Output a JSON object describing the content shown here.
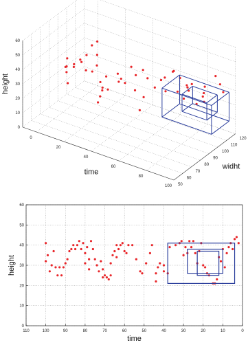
{
  "chart_data": [
    {
      "type": "scatter",
      "title": "",
      "xlabel": "time",
      "ylabel": "widht",
      "zlabel": "height",
      "xlim": [
        0,
        110
      ],
      "ylim": [
        50,
        120
      ],
      "zlim": [
        0,
        60
      ],
      "x_ticks": [
        "100",
        "80",
        "60",
        "40",
        "20",
        "0"
      ],
      "y_ticks": [
        "50",
        "60",
        "70",
        "80",
        "90",
        "100",
        "110",
        "120"
      ],
      "z_ticks": [
        "0",
        "10",
        "20",
        "30",
        "40",
        "50",
        "60"
      ],
      "grid": true,
      "marker_color": "#e8262a",
      "box_color": "#2b3e9c",
      "points": [
        [
          100,
          85,
          35
        ],
        [
          98,
          80,
          32
        ],
        [
          96,
          78,
          30
        ],
        [
          94,
          75,
          36
        ],
        [
          92,
          80,
          34
        ],
        [
          90,
          70,
          28
        ],
        [
          88,
          74,
          40
        ],
        [
          86,
          78,
          42
        ],
        [
          84,
          82,
          44
        ],
        [
          82,
          85,
          50
        ],
        [
          80,
          88,
          52
        ],
        [
          80,
          70,
          46
        ],
        [
          78,
          72,
          40
        ],
        [
          76,
          76,
          38
        ],
        [
          75,
          80,
          48
        ],
        [
          72,
          75,
          44
        ],
        [
          70,
          78,
          26
        ],
        [
          69,
          74,
          24
        ],
        [
          68,
          70,
          22
        ],
        [
          66,
          72,
          32
        ],
        [
          65,
          68,
          38
        ],
        [
          64,
          75,
          30
        ],
        [
          62,
          70,
          42
        ],
        [
          60,
          80,
          40
        ],
        [
          58,
          78,
          36
        ],
        [
          56,
          82,
          34
        ],
        [
          55,
          76,
          40
        ],
        [
          54,
          86,
          44
        ],
        [
          52,
          88,
          38
        ],
        [
          50,
          84,
          30
        ],
        [
          48,
          90,
          42
        ],
        [
          46,
          92,
          36
        ],
        [
          45,
          86,
          26
        ],
        [
          44,
          80,
          20
        ],
        [
          42,
          94,
          30
        ],
        [
          40,
          98,
          34
        ],
        [
          38,
          100,
          26
        ],
        [
          36,
          96,
          38
        ],
        [
          34,
          102,
          40
        ],
        [
          32,
          100,
          42
        ],
        [
          30,
          104,
          36
        ],
        [
          28,
          98,
          30
        ],
        [
          26,
          102,
          24
        ],
        [
          25,
          106,
          28
        ],
        [
          24,
          108,
          32
        ],
        [
          22,
          100,
          34
        ],
        [
          20,
          96,
          38
        ],
        [
          18,
          104,
          22
        ],
        [
          16,
          108,
          26
        ],
        [
          14,
          106,
          30
        ],
        [
          12,
          104,
          36
        ],
        [
          10,
          100,
          28
        ],
        [
          8,
          110,
          42
        ],
        [
          6,
          112,
          36
        ],
        [
          5,
          114,
          30
        ]
      ],
      "boxes": [
        {
          "x": [
            2,
            38
          ],
          "y": [
            96,
            116
          ],
          "z": [
            10,
            30
          ]
        },
        {
          "x": [
            8,
            26
          ],
          "y": [
            100,
            112
          ],
          "z": [
            16,
            28
          ]
        }
      ]
    },
    {
      "type": "scatter",
      "title": "",
      "xlabel": "time",
      "ylabel": "height",
      "xlim": [
        110,
        0
      ],
      "ylim": [
        0,
        60
      ],
      "x_ticks": [
        "110",
        "100",
        "90",
        "80",
        "70",
        "60",
        "50",
        "40",
        "30",
        "20",
        "10",
        "0"
      ],
      "y_ticks": [
        "0",
        "10",
        "20",
        "30",
        "40",
        "50",
        "60"
      ],
      "grid": true,
      "marker_color": "#e8262a",
      "box_color": "#2b3e9c",
      "points": [
        [
          100,
          41
        ],
        [
          100,
          32
        ],
        [
          99,
          35
        ],
        [
          98,
          27
        ],
        [
          97,
          30
        ],
        [
          96,
          37
        ],
        [
          95,
          29
        ],
        [
          94,
          25
        ],
        [
          93,
          29
        ],
        [
          92,
          25
        ],
        [
          91,
          29
        ],
        [
          90,
          31
        ],
        [
          89,
          33
        ],
        [
          88,
          37
        ],
        [
          87,
          38
        ],
        [
          86,
          40
        ],
        [
          85,
          38
        ],
        [
          84,
          40
        ],
        [
          83,
          42
        ],
        [
          82,
          38
        ],
        [
          81,
          41
        ],
        [
          80,
          36
        ],
        [
          80,
          31
        ],
        [
          79,
          39
        ],
        [
          78,
          33
        ],
        [
          78,
          28
        ],
        [
          77,
          42
        ],
        [
          76,
          38
        ],
        [
          75,
          33
        ],
        [
          74,
          30
        ],
        [
          73,
          27
        ],
        [
          72,
          32
        ],
        [
          71,
          28
        ],
        [
          71,
          24
        ],
        [
          70,
          25
        ],
        [
          69,
          24
        ],
        [
          68,
          23
        ],
        [
          67,
          25
        ],
        [
          67,
          31
        ],
        [
          66,
          35
        ],
        [
          65,
          37
        ],
        [
          64,
          40
        ],
        [
          64,
          34
        ],
        [
          63,
          38
        ],
        [
          62,
          40
        ],
        [
          61,
          41
        ],
        [
          60,
          37
        ],
        [
          59,
          36
        ],
        [
          58,
          40
        ],
        [
          56,
          40
        ],
        [
          54,
          33
        ],
        [
          52,
          27
        ],
        [
          51,
          26
        ],
        [
          49,
          31
        ],
        [
          47,
          36
        ],
        [
          46,
          40
        ],
        [
          44,
          26
        ],
        [
          44,
          22
        ],
        [
          43,
          29
        ],
        [
          42,
          31
        ],
        [
          40,
          30
        ],
        [
          40,
          27
        ],
        [
          38,
          26
        ],
        [
          37,
          39
        ],
        [
          34,
          40
        ],
        [
          32,
          41
        ],
        [
          31,
          42
        ],
        [
          30,
          35
        ],
        [
          29,
          39
        ],
        [
          28,
          36
        ],
        [
          27,
          42
        ],
        [
          26,
          39
        ],
        [
          25,
          42
        ],
        [
          24,
          36
        ],
        [
          23,
          31
        ],
        [
          22,
          37
        ],
        [
          21,
          41
        ],
        [
          20,
          30
        ],
        [
          19,
          29
        ],
        [
          18,
          26
        ],
        [
          17,
          25
        ],
        [
          15,
          21
        ],
        [
          14,
          21
        ],
        [
          13,
          23
        ],
        [
          12,
          34
        ],
        [
          11,
          32
        ],
        [
          10,
          38
        ],
        [
          9,
          29
        ],
        [
          8,
          36
        ],
        [
          7,
          39
        ],
        [
          6,
          41
        ],
        [
          5,
          38
        ],
        [
          4,
          43
        ],
        [
          3,
          44
        ],
        [
          2,
          41
        ]
      ],
      "boxes": [
        {
          "x": [
            4,
            38
          ],
          "y": [
            21,
            41
          ]
        },
        {
          "x": [
            10,
            28
          ],
          "y": [
            26,
            38
          ]
        },
        {
          "x": [
            12,
            23
          ],
          "y": [
            25,
            37
          ]
        }
      ]
    }
  ]
}
